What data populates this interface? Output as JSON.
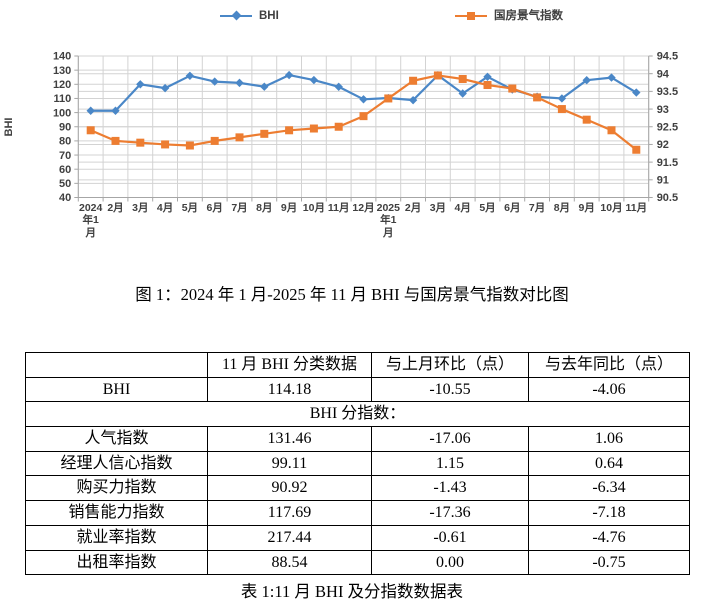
{
  "figure_caption": "图 1：2024 年 1 月-2025 年 11 月 BHI 与国房景气指数对比图",
  "table_caption": "表 1:11 月 BHI 及分指数数据表",
  "table": {
    "headers": [
      "",
      "11 月 BHI 分类数据",
      "与上月环比（点）",
      "与去年同比（点）"
    ],
    "subheader": "BHI 分指数：",
    "rows": [
      [
        "BHI",
        "114.18",
        "-10.55",
        "-4.06"
      ],
      [
        "人气指数",
        "131.46",
        "-17.06",
        "1.06"
      ],
      [
        "经理人信心指数",
        "99.11",
        "1.15",
        "0.64"
      ],
      [
        "购买力指数",
        "90.92",
        "-1.43",
        "-6.34"
      ],
      [
        "销售能力指数",
        "117.69",
        "-17.36",
        "-7.18"
      ],
      [
        "就业率指数",
        "217.44",
        "-0.61",
        "-4.76"
      ],
      [
        "出租率指数",
        "88.54",
        "0.00",
        "-0.75"
      ]
    ]
  },
  "chart_data": {
    "type": "line",
    "title": "",
    "categories": [
      "2024年1月",
      "2月",
      "3月",
      "4月",
      "5月",
      "6月",
      "7月",
      "8月",
      "9月",
      "10月",
      "11月",
      "12月",
      "2025年1月",
      "2月",
      "3月",
      "4月",
      "5月",
      "6月",
      "7月",
      "8月",
      "9月",
      "10月",
      "11月"
    ],
    "series": [
      {
        "name": "BHI",
        "axis": "left",
        "color": "#4A87C7",
        "marker": "diamond",
        "values": [
          101.3,
          101.3,
          120.0,
          117.3,
          126.0,
          121.9,
          121.0,
          118.3,
          126.5,
          123.0,
          118.24,
          109.4,
          110.3,
          108.8,
          126.4,
          113.5,
          125.3,
          116.3,
          111.2,
          110.0,
          122.9,
          124.73,
          114.18
        ]
      },
      {
        "name": "国房景气指数",
        "axis": "right",
        "color": "#ED7D31",
        "marker": "square",
        "values": [
          92.4,
          92.1,
          92.05,
          92.0,
          91.97,
          92.1,
          92.2,
          92.3,
          92.4,
          92.45,
          92.5,
          92.8,
          93.3,
          93.8,
          93.95,
          93.85,
          93.68,
          93.58,
          93.33,
          93.0,
          92.7,
          92.4,
          91.85
        ]
      }
    ],
    "left_axis": {
      "title": "BHI",
      "min": 40,
      "max": 140,
      "step": 10
    },
    "right_axis": {
      "title": "",
      "min": 90.5,
      "max": 94.5,
      "step": 0.5
    },
    "legend_position": "top",
    "grid": true,
    "grid_color": "#D3D3D3",
    "axis_color": "#A6A6A6",
    "tick_text_color": "#404040"
  }
}
